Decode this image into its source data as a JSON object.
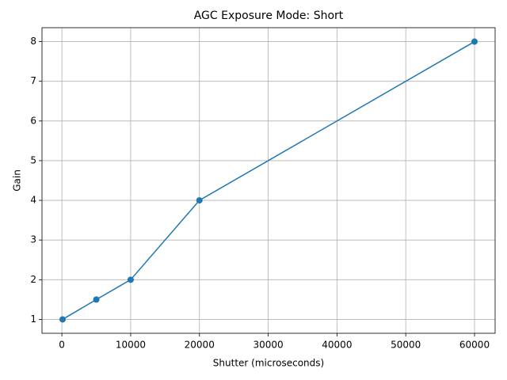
{
  "chart_data": {
    "type": "line",
    "title": "AGC Exposure Mode: Short",
    "x_label": "Shutter (microseconds)",
    "y_label": "Gain",
    "x": [
      100,
      5000,
      10000,
      20000,
      60000
    ],
    "series": [
      {
        "color": "#1f77b4",
        "values": [
          1,
          1.5,
          2,
          4,
          8
        ]
      }
    ],
    "xlim": [
      -2895,
      62995
    ],
    "ylim": [
      0.65,
      8.35
    ],
    "xticks": [
      0,
      10000,
      20000,
      30000,
      40000,
      50000,
      60000
    ],
    "yticks": [
      1,
      2,
      3,
      4,
      5,
      6,
      7,
      8
    ],
    "grid": true,
    "markers": true
  }
}
